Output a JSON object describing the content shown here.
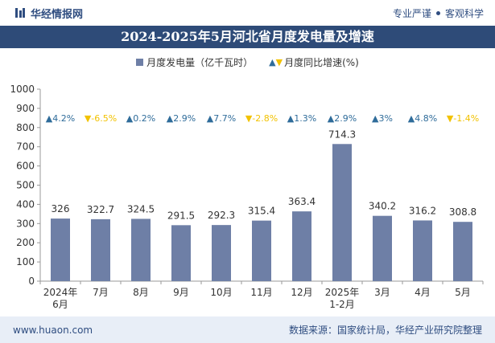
{
  "header": {
    "brand": "华经情报网",
    "tagline_left": "专业严谨",
    "tagline_right": "客观科学"
  },
  "chart_data": {
    "type": "bar",
    "title": "2024-2025年5月河北省月度发电量及增速",
    "categories": [
      "2024年6月",
      "7月",
      "8月",
      "9月",
      "10月",
      "11月",
      "12月",
      "2025年1-2月",
      "3月",
      "4月",
      "5月"
    ],
    "series": [
      {
        "name": "月度发电量（亿千瓦时）",
        "values": [
          326,
          322.7,
          324.5,
          291.5,
          292.3,
          315.4,
          363.4,
          714.3,
          340.2,
          316.2,
          308.8
        ]
      },
      {
        "name": "月度同比增速(%)",
        "values": [
          4.2,
          -6.5,
          0.2,
          2.9,
          7.7,
          -2.8,
          1.3,
          2.9,
          3,
          4.8,
          -1.4
        ]
      }
    ],
    "growth_labels": [
      "4.2%",
      "-6.5%",
      "0.2%",
      "2.9%",
      "7.7%",
      "-2.8%",
      "1.3%",
      "2.9%",
      "3%",
      "4.8%",
      "-1.4%"
    ],
    "y_ticks": [
      0,
      100,
      200,
      300,
      400,
      500,
      600,
      700,
      800,
      900,
      1000
    ],
    "ylim": [
      0,
      1000
    ],
    "colors": {
      "bar": "#6e7fa6",
      "up": "#2f6c9a",
      "down": "#f2c200"
    }
  },
  "footer": {
    "site": "www.huaon.com",
    "source": "数据来源：国家统计局，华经产业研究院整理"
  }
}
